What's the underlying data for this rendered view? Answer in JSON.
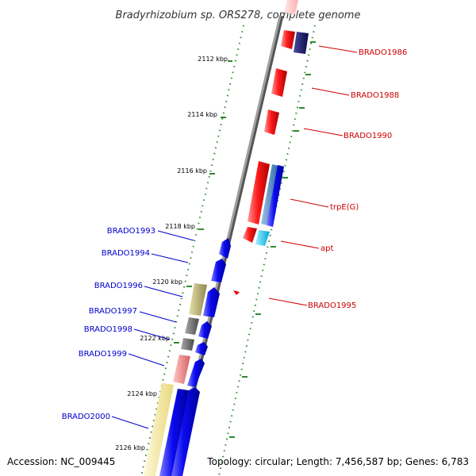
{
  "title": "Bradyrhizobium sp. ORS278, complete genome",
  "footer": {
    "accession": "Accession: NC_009445",
    "topology": "Topology: circular; Length: 7,456,587 bp; Genes: 6,783"
  },
  "colors": {
    "forward_label": "#cc0000",
    "reverse_label": "#0000cc",
    "tick": "#2e8b2e",
    "backbone": "#8c8c8c"
  },
  "kbp_labels": [
    "2112 kbp",
    "2114 kbp",
    "2116 kbp",
    "2118 kbp",
    "2120 kbp",
    "2122 kbp",
    "2124 kbp",
    "2126 kbp"
  ],
  "forward_genes": [
    "BRADO1986",
    "BRADO1988",
    "BRADO1990",
    "trpE(G)",
    "apt",
    "BRADO1995"
  ],
  "reverse_genes": [
    "BRADO1993",
    "BRADO1994",
    "BRADO1996",
    "BRADO1997",
    "BRADO1998",
    "BRADO1999",
    "BRADO2000"
  ]
}
